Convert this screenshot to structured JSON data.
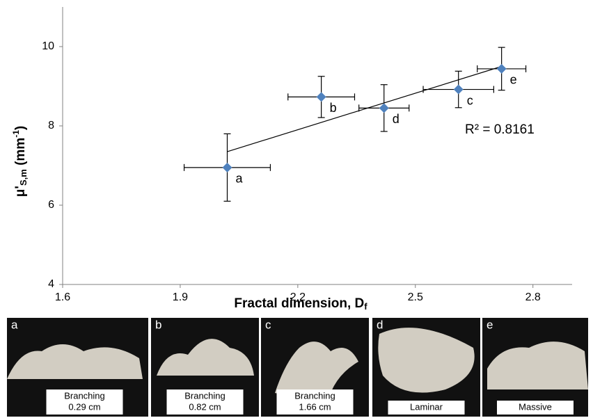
{
  "chart_data": {
    "type": "scatter",
    "x_label_parts": [
      "Fractal dimension, D",
      "f"
    ],
    "y_label_parts": [
      "μ'",
      "S,m",
      " (mm",
      "-1",
      ")"
    ],
    "x": [
      2.02,
      2.26,
      2.61,
      2.42,
      2.72
    ],
    "values": [
      6.95,
      8.73,
      8.92,
      8.45,
      9.44
    ],
    "x_err": [
      0.11,
      0.085,
      0.09,
      0.064,
      0.062
    ],
    "y_err": [
      0.85,
      0.52,
      0.46,
      0.59,
      0.54
    ],
    "labels": [
      "a",
      "b",
      "c",
      "d",
      "e"
    ],
    "color": "#4f81bd",
    "trendline": {
      "x": [
        2.02,
        2.72
      ],
      "y": [
        7.35,
        9.5
      ]
    },
    "annotation": "R² = 0.8161",
    "xlim": [
      1.6,
      2.9
    ],
    "xticks": [
      1.6,
      1.9,
      2.2,
      2.5,
      2.8
    ],
    "ylim": [
      4,
      11
    ],
    "yticks": [
      4,
      6,
      8,
      10
    ],
    "grid": false
  },
  "panels": [
    {
      "letter": "a",
      "caption": [
        "Branching",
        "0.29 cm"
      ]
    },
    {
      "letter": "b",
      "caption": [
        "Branching",
        "0.82 cm"
      ]
    },
    {
      "letter": "c",
      "caption": [
        "Branching",
        "1.66 cm"
      ]
    },
    {
      "letter": "d",
      "caption": [
        "Laminar"
      ]
    },
    {
      "letter": "e",
      "caption": [
        "Massive"
      ]
    }
  ]
}
